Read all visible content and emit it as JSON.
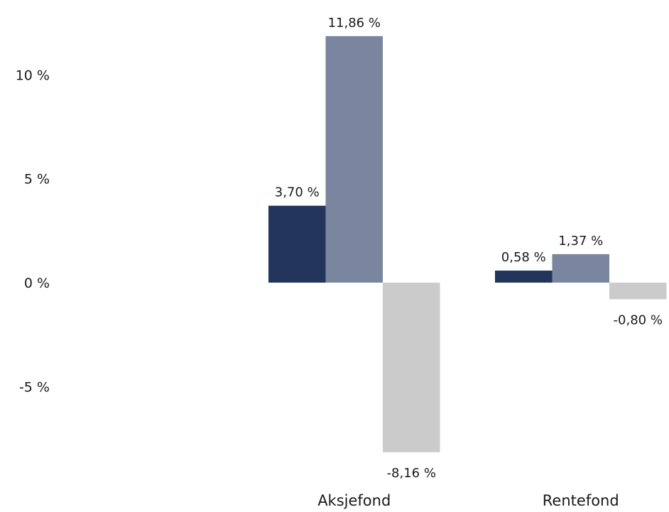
{
  "chart_data": {
    "type": "bar",
    "categories": [
      "Aksjefond",
      "Rentefond"
    ],
    "series": [
      {
        "values": [
          3.7,
          0.58
        ],
        "labels": [
          "3,70 %",
          "0,58 %"
        ],
        "color": "#24355b"
      },
      {
        "values": [
          11.86,
          1.37
        ],
        "labels": [
          "11,86 %",
          "1,37 %"
        ],
        "color": "#7a869f"
      },
      {
        "values": [
          -8.16,
          -0.8
        ],
        "labels": [
          "-8,16 %",
          "-0,80 %"
        ],
        "color": "#cbcbcb"
      }
    ],
    "y_ticks": [
      {
        "value": 10,
        "label": "10 %"
      },
      {
        "value": 5,
        "label": "5 %"
      },
      {
        "value": 0,
        "label": "0 %"
      },
      {
        "value": -5,
        "label": "-5 %"
      }
    ],
    "ylim": [
      -11,
      13.5
    ],
    "grid": false,
    "legend": "none"
  }
}
